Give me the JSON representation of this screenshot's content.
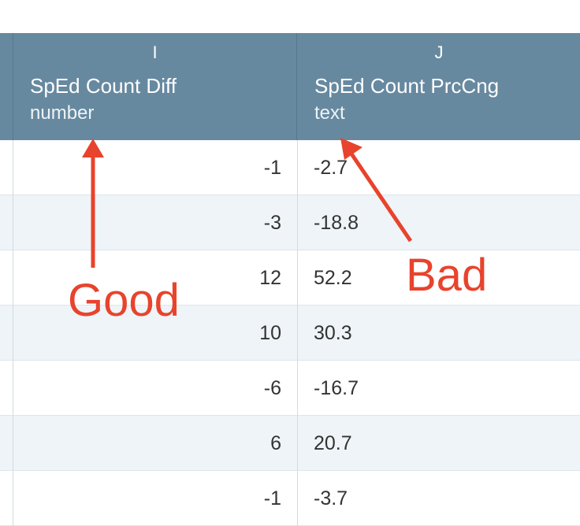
{
  "columns": [
    {
      "letter": "I",
      "title": "SpEd Count Diff",
      "type": "number"
    },
    {
      "letter": "J",
      "title": "SpEd Count PrcCng",
      "type": "text"
    }
  ],
  "rows": [
    {
      "diff": "-1",
      "prccng": "-2.7"
    },
    {
      "diff": "-3",
      "prccng": "-18.8"
    },
    {
      "diff": "12",
      "prccng": "52.2"
    },
    {
      "diff": "10",
      "prccng": "30.3"
    },
    {
      "diff": "-6",
      "prccng": "-16.7"
    },
    {
      "diff": "6",
      "prccng": "20.7"
    },
    {
      "diff": "-1",
      "prccng": "-3.7"
    }
  ],
  "annotations": {
    "good_label": "Good",
    "bad_label": "Bad",
    "color": "#e8432d"
  },
  "colors": {
    "header_bg": "#6789a0",
    "row_alt_bg": "#eef4f7"
  }
}
